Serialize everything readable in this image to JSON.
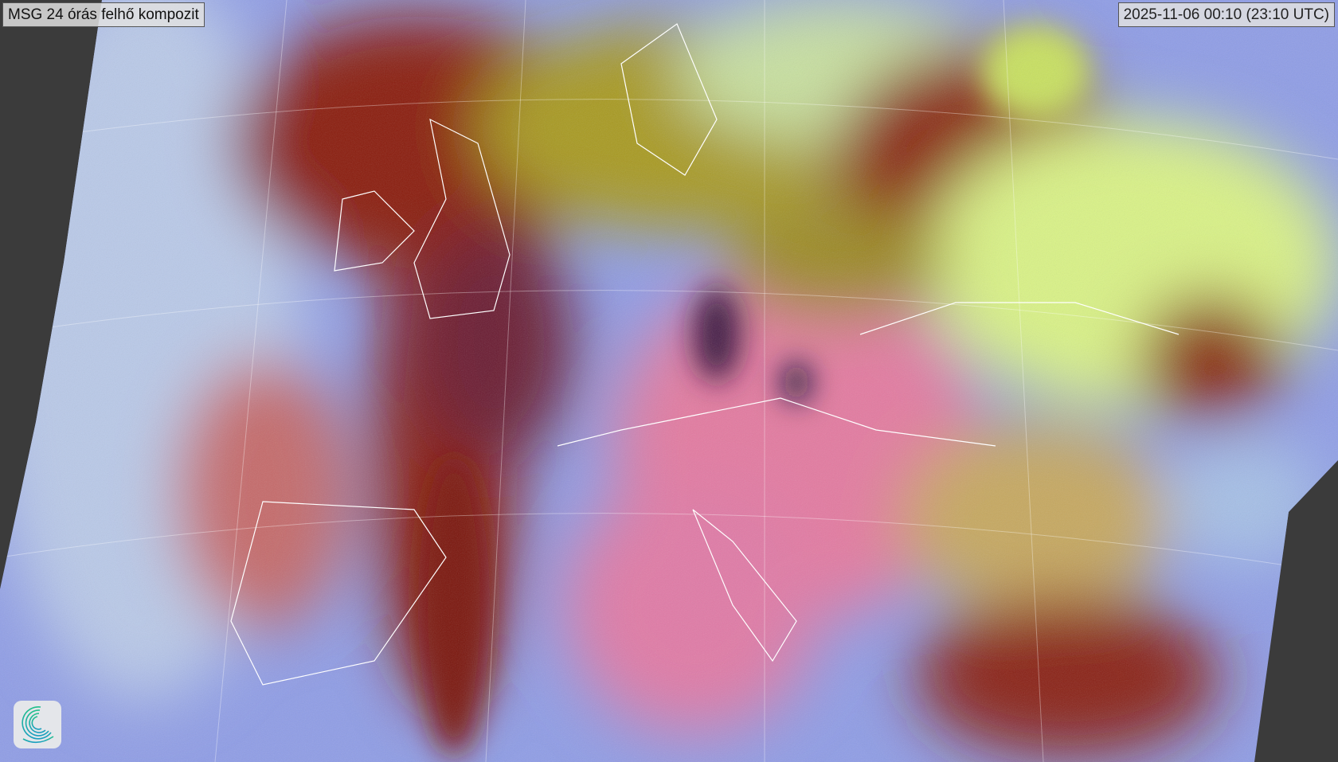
{
  "title": "MSG 24 órás felhő kompozit",
  "timestamp": "2025-11-06 00:10 (23:10 UTC)",
  "logo": {
    "icon": "spiral-logo-icon",
    "colors": [
      "#1fbf8a",
      "#1a9fc0"
    ]
  },
  "colors": {
    "background": "#3b3b3b",
    "clear_sea": "#8f9de6",
    "clear_land": "#e37aa0",
    "thick_cloud": "#8a1a10",
    "low_cloud": "#b9c9e8",
    "dust_or_thin": "#d9f286",
    "mid_cloud": "#a89a22",
    "coastlines": "#ffffff"
  }
}
